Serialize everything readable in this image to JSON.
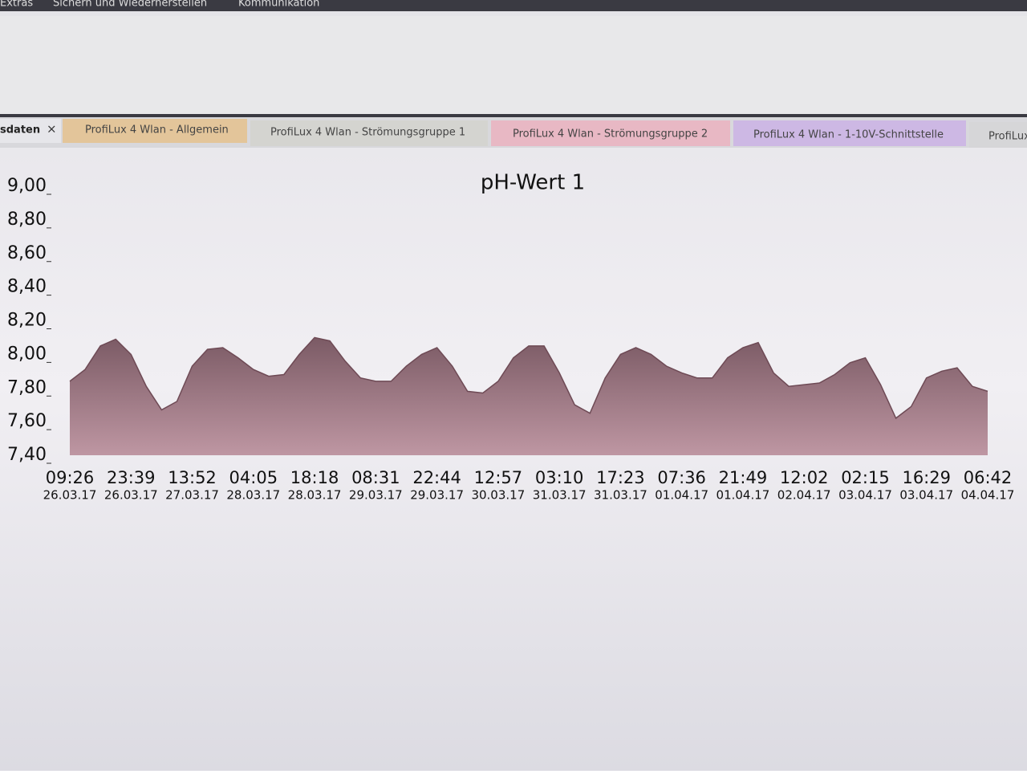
{
  "menu": [
    "Extras",
    "Sichern und Wiederherstellen",
    "Kommunikation"
  ],
  "tabs": [
    {
      "label": "sdaten",
      "close": "×"
    },
    {
      "label": "ProfiLux 4 Wlan - Allgemein"
    },
    {
      "label": "ProfiLux 4 Wlan - Strömungsgruppe 1"
    },
    {
      "label": "ProfiLux 4 Wlan - Strömungsgruppe 2"
    },
    {
      "label": "ProfiLux 4 Wlan - 1-10V-Schnittstelle"
    },
    {
      "label": "ProfiLux"
    }
  ],
  "chart_data": {
    "type": "area",
    "title": "pH-Wert 1",
    "color": "#b98d9a",
    "line_color": "#6e4a55",
    "ylim": [
      7.4,
      9.0
    ],
    "yticks": [
      {
        "value": 7.4,
        "label": "7,40"
      },
      {
        "value": 7.6,
        "label": "7,60"
      },
      {
        "value": 7.8,
        "label": "7,80"
      },
      {
        "value": 8.0,
        "label": "8,00"
      },
      {
        "value": 8.2,
        "label": "8,20"
      },
      {
        "value": 8.4,
        "label": "8,40"
      },
      {
        "value": 8.6,
        "label": "8,60"
      },
      {
        "value": 8.8,
        "label": "8,80"
      },
      {
        "value": 9.0,
        "label": "9,00"
      }
    ],
    "x_labels": [
      {
        "time": "09:26",
        "date": "26.03.17"
      },
      {
        "time": "23:39",
        "date": "26.03.17"
      },
      {
        "time": "13:52",
        "date": "27.03.17"
      },
      {
        "time": "04:05",
        "date": "28.03.17"
      },
      {
        "time": "18:18",
        "date": "28.03.17"
      },
      {
        "time": "08:31",
        "date": "29.03.17"
      },
      {
        "time": "22:44",
        "date": "29.03.17"
      },
      {
        "time": "12:57",
        "date": "30.03.17"
      },
      {
        "time": "03:10",
        "date": "31.03.17"
      },
      {
        "time": "17:23",
        "date": "31.03.17"
      },
      {
        "time": "07:36",
        "date": "01.04.17"
      },
      {
        "time": "21:49",
        "date": "01.04.17"
      },
      {
        "time": "12:02",
        "date": "02.04.17"
      },
      {
        "time": "02:15",
        "date": "03.04.17"
      },
      {
        "time": "16:29",
        "date": "03.04.17"
      },
      {
        "time": "06:42",
        "date": "04.04.17"
      }
    ],
    "values": [
      7.84,
      7.91,
      8.05,
      8.09,
      8.0,
      7.81,
      7.67,
      7.72,
      7.93,
      8.03,
      8.04,
      7.98,
      7.91,
      7.87,
      7.88,
      8.0,
      8.1,
      8.08,
      7.96,
      7.86,
      7.84,
      7.84,
      7.93,
      8.0,
      8.04,
      7.93,
      7.78,
      7.77,
      7.84,
      7.98,
      8.05,
      8.05,
      7.89,
      7.7,
      7.65,
      7.86,
      8.0,
      8.04,
      8.0,
      7.93,
      7.89,
      7.86,
      7.86,
      7.98,
      8.04,
      8.07,
      7.89,
      7.81,
      7.82,
      7.83,
      7.88,
      7.95,
      7.98,
      7.82,
      7.62,
      7.69,
      7.86,
      7.9,
      7.92,
      7.81,
      7.78
    ]
  }
}
